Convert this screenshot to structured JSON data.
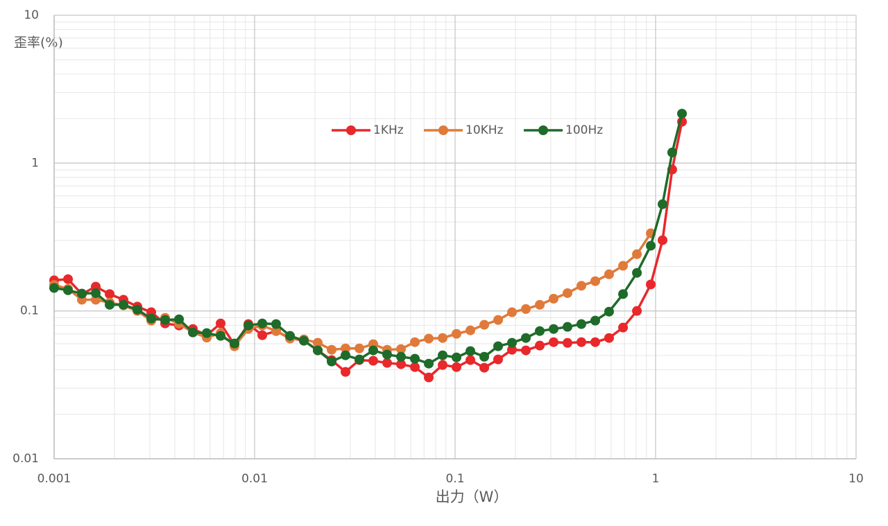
{
  "chart_data": {
    "type": "line",
    "y_label": "歪率(%)",
    "x_label": "出力（W）",
    "x": [
      0.001,
      0.001173,
      0.001375,
      0.001613,
      0.001892,
      0.002218,
      0.002602,
      0.003052,
      0.003578,
      0.004197,
      0.004921,
      0.005771,
      0.006768,
      0.007938,
      0.00931,
      0.01092,
      0.0128,
      0.01502,
      0.01761,
      0.02065,
      0.02422,
      0.0284,
      0.0333,
      0.03906,
      0.04581,
      0.05372,
      0.063,
      0.07389,
      0.08665,
      0.1016,
      0.1192,
      0.1398,
      0.1639,
      0.1922,
      0.2254,
      0.2644,
      0.31,
      0.3636,
      0.4264,
      0.5,
      0.586,
      0.688,
      0.807,
      0.946,
      1.083,
      1.21,
      1.354
    ],
    "series": [
      {
        "name": "1KHz",
        "color": "#e8282b",
        "values": [
          0.161,
          0.164,
          0.13,
          0.146,
          0.13,
          0.119,
          0.107,
          0.098,
          0.0823,
          0.0797,
          0.0755,
          0.0685,
          0.0823,
          0.0589,
          0.0815,
          0.0685,
          0.0731,
          0.0656,
          0.0629,
          0.0541,
          0.0465,
          0.0387,
          0.0465,
          0.046,
          0.0445,
          0.0436,
          0.0417,
          0.0355,
          0.0431,
          0.0417,
          0.0465,
          0.0413,
          0.047,
          0.0546,
          0.0541,
          0.0583,
          0.0615,
          0.0608,
          0.0615,
          0.0615,
          0.0656,
          0.0772,
          0.1,
          0.151,
          0.301,
          0.904,
          1.905
        ]
      },
      {
        "name": "10KHz",
        "color": "#e07a3a",
        "values": [
          0.15,
          0.141,
          0.119,
          0.119,
          0.114,
          0.109,
          0.1,
          0.086,
          0.0898,
          0.082,
          0.0716,
          0.066,
          0.0708,
          0.0577,
          0.0755,
          0.0797,
          0.0731,
          0.065,
          0.0642,
          0.0609,
          0.0546,
          0.0558,
          0.0558,
          0.0596,
          0.0546,
          0.0552,
          0.0615,
          0.065,
          0.0656,
          0.07,
          0.0739,
          0.0806,
          0.0869,
          0.098,
          0.103,
          0.11,
          0.121,
          0.132,
          0.148,
          0.159,
          0.177,
          0.202,
          0.242,
          0.335,
          null,
          null,
          null
        ]
      },
      {
        "name": "100Hz",
        "color": "#1e6b2a",
        "values": [
          0.143,
          0.138,
          0.131,
          0.132,
          0.11,
          0.11,
          0.102,
          0.0888,
          0.0869,
          0.0878,
          0.0716,
          0.0708,
          0.0678,
          0.0602,
          0.0797,
          0.0823,
          0.0815,
          0.0678,
          0.0629,
          0.0541,
          0.0455,
          0.0501,
          0.047,
          0.0541,
          0.0507,
          0.049,
          0.0475,
          0.044,
          0.0501,
          0.0485,
          0.0535,
          0.049,
          0.0577,
          0.0609,
          0.0656,
          0.0731,
          0.0755,
          0.078,
          0.0815,
          0.086,
          0.0989,
          0.13,
          0.181,
          0.276,
          0.527,
          1.18,
          2.16
        ]
      }
    ],
    "xlim": [
      0.001,
      10
    ],
    "ylim": [
      0.01,
      10
    ],
    "xticks": [
      0.001,
      0.01,
      0.1,
      1,
      10
    ],
    "yticks": [
      0.01,
      0.1,
      1,
      10
    ],
    "xscale": "log",
    "yscale": "log",
    "grid": true,
    "minor_grid": true,
    "legend": "top"
  }
}
